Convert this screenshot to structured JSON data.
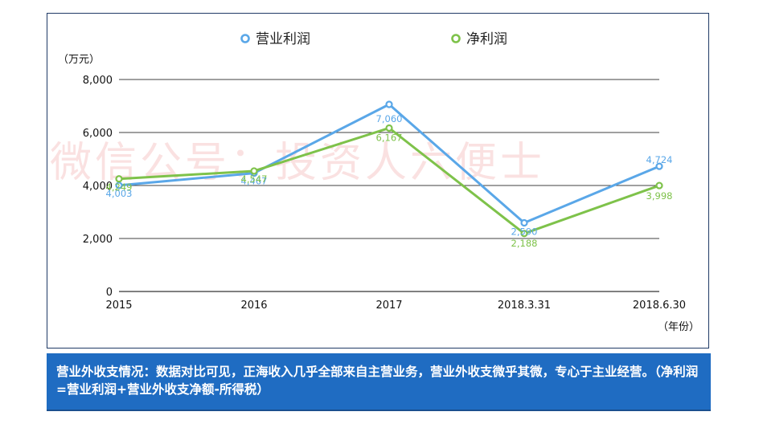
{
  "chart_data": {
    "type": "line",
    "categories": [
      "2015",
      "2016",
      "2017",
      "2018.3.31",
      "2018.6.30"
    ],
    "series": [
      {
        "name": "营业利润",
        "color": "#5aa7e8",
        "values": [
          4003,
          4467,
          7060,
          2590,
          4724
        ],
        "labels": [
          "4,003",
          "4,467",
          "7,060",
          "2,590",
          "4,724"
        ]
      },
      {
        "name": "净利润",
        "color": "#7ec24a",
        "values": [
          4249,
          4547,
          6167,
          2188,
          3998
        ],
        "labels": [
          "4,249",
          "4,547",
          "6,167",
          "2,188",
          "3,998"
        ]
      }
    ],
    "yticks": [
      "0",
      "2,000",
      "4,000",
      "6,000",
      "8,000"
    ],
    "ylim": [
      0,
      8000
    ],
    "yunit": "（万元）",
    "xunit": "（年份）",
    "legend_placement": "top",
    "grid": true
  },
  "watermark": "微信公号：投资人六便士",
  "note": "营业外收支情况：数据对比可见，正海收入几乎全部来自主营业务，营业外收支微乎其微，专心于主业经营。（净利润=营业利润+营业外收支净额-所得税）"
}
